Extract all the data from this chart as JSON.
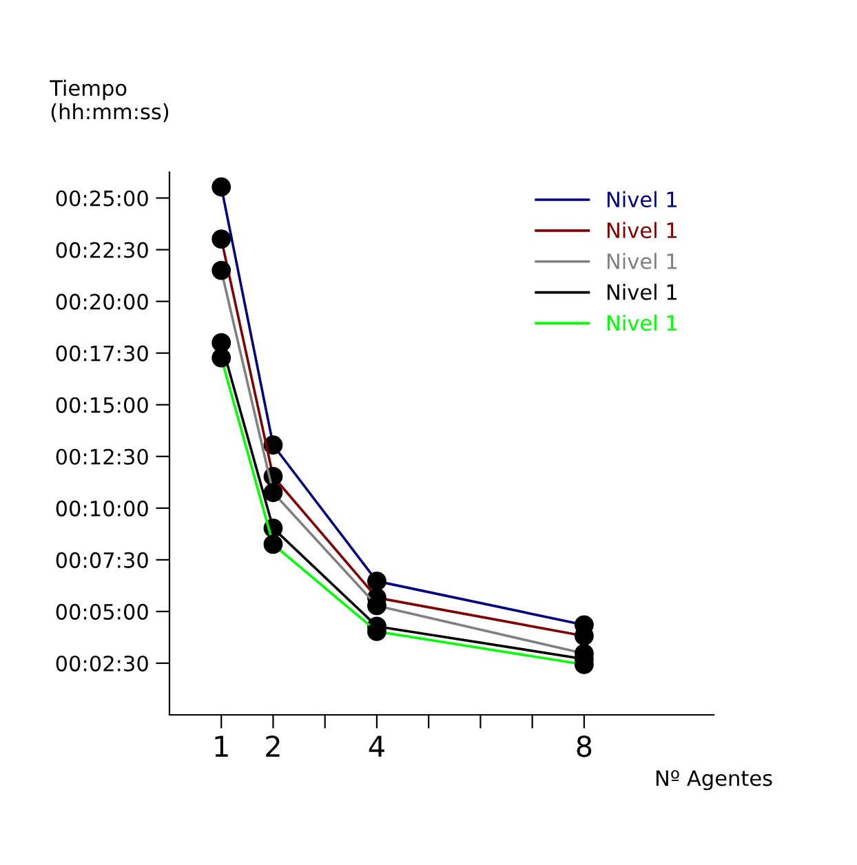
{
  "chart_data": {
    "type": "line",
    "xlabel": "Nº Agentes",
    "ylabel": "Tiempo\n(hh:mm:ss)",
    "x": [
      1,
      2,
      4,
      8
    ],
    "series": [
      {
        "name": "Nivel 1",
        "color": "#000080",
        "values": [
          1532,
          783,
          388,
          261
        ]
      },
      {
        "name": "Nivel 1",
        "color": "#800000",
        "values": [
          1381,
          692,
          340,
          229
        ]
      },
      {
        "name": "Nivel 1",
        "color": "#808080",
        "values": [
          1290,
          645,
          317,
          178
        ]
      },
      {
        "name": "Nivel 1",
        "color": "#000000",
        "values": [
          1080,
          542,
          257,
          162
        ]
      },
      {
        "name": "Nivel 1",
        "color": "#00ff00",
        "values": [
          1036,
          495,
          242,
          146
        ]
      }
    ],
    "xlim": [
      0,
      10.5
    ],
    "xticks": [
      1,
      2,
      {
        "value": 3,
        "label": null
      },
      4,
      {
        "value": 5,
        "label": null
      },
      {
        "value": 6,
        "label": null
      },
      {
        "value": 7,
        "label": null
      },
      8
    ],
    "ylim": [
      0,
      1575
    ],
    "yticks": [
      {
        "value": 150,
        "label": "00:02:30"
      },
      {
        "value": 300,
        "label": "00:05:00"
      },
      {
        "value": 450,
        "label": "00:07:30"
      },
      {
        "value": 600,
        "label": "00:10:00"
      },
      {
        "value": 750,
        "label": "00:12:30"
      },
      {
        "value": 900,
        "label": "00:15:00"
      },
      {
        "value": 1050,
        "label": "00:17:30"
      },
      {
        "value": 1200,
        "label": "00:20:00"
      },
      {
        "value": 1350,
        "label": "00:22:30"
      },
      {
        "value": 1500,
        "label": "00:25:00"
      }
    ],
    "marker": "circle",
    "line_style": "solid",
    "legend": "top right",
    "grid": false
  }
}
